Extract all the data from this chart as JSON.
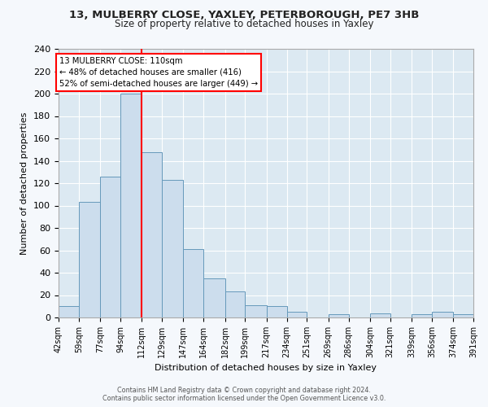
{
  "title": "13, MULBERRY CLOSE, YAXLEY, PETERBOROUGH, PE7 3HB",
  "subtitle": "Size of property relative to detached houses in Yaxley",
  "xlabel": "Distribution of detached houses by size in Yaxley",
  "ylabel": "Number of detached properties",
  "bar_color": "#ccdded",
  "bar_edge_color": "#6699bb",
  "plot_bg_color": "#dce9f2",
  "fig_bg_color": "#f5f8fc",
  "grid_color": "#ffffff",
  "bin_edges": [
    42,
    59,
    77,
    94,
    112,
    129,
    147,
    164,
    182,
    199,
    217,
    234,
    251,
    269,
    286,
    304,
    321,
    339,
    356,
    374,
    391
  ],
  "bin_labels": [
    "42sqm",
    "59sqm",
    "77sqm",
    "94sqm",
    "112sqm",
    "129sqm",
    "147sqm",
    "164sqm",
    "182sqm",
    "199sqm",
    "217sqm",
    "234sqm",
    "251sqm",
    "269sqm",
    "286sqm",
    "304sqm",
    "321sqm",
    "339sqm",
    "356sqm",
    "374sqm",
    "391sqm"
  ],
  "counts": [
    10,
    103,
    126,
    200,
    148,
    123,
    61,
    35,
    23,
    11,
    10,
    5,
    0,
    3,
    0,
    4,
    0,
    3,
    5,
    3
  ],
  "vline_x": 112,
  "annotation_title": "13 MULBERRY CLOSE: 110sqm",
  "annotation_line1": "← 48% of detached houses are smaller (416)",
  "annotation_line2": "52% of semi-detached houses are larger (449) →",
  "ylim": [
    0,
    240
  ],
  "yticks": [
    0,
    20,
    40,
    60,
    80,
    100,
    120,
    140,
    160,
    180,
    200,
    220,
    240
  ],
  "footer_line1": "Contains HM Land Registry data © Crown copyright and database right 2024.",
  "footer_line2": "Contains public sector information licensed under the Open Government Licence v3.0."
}
